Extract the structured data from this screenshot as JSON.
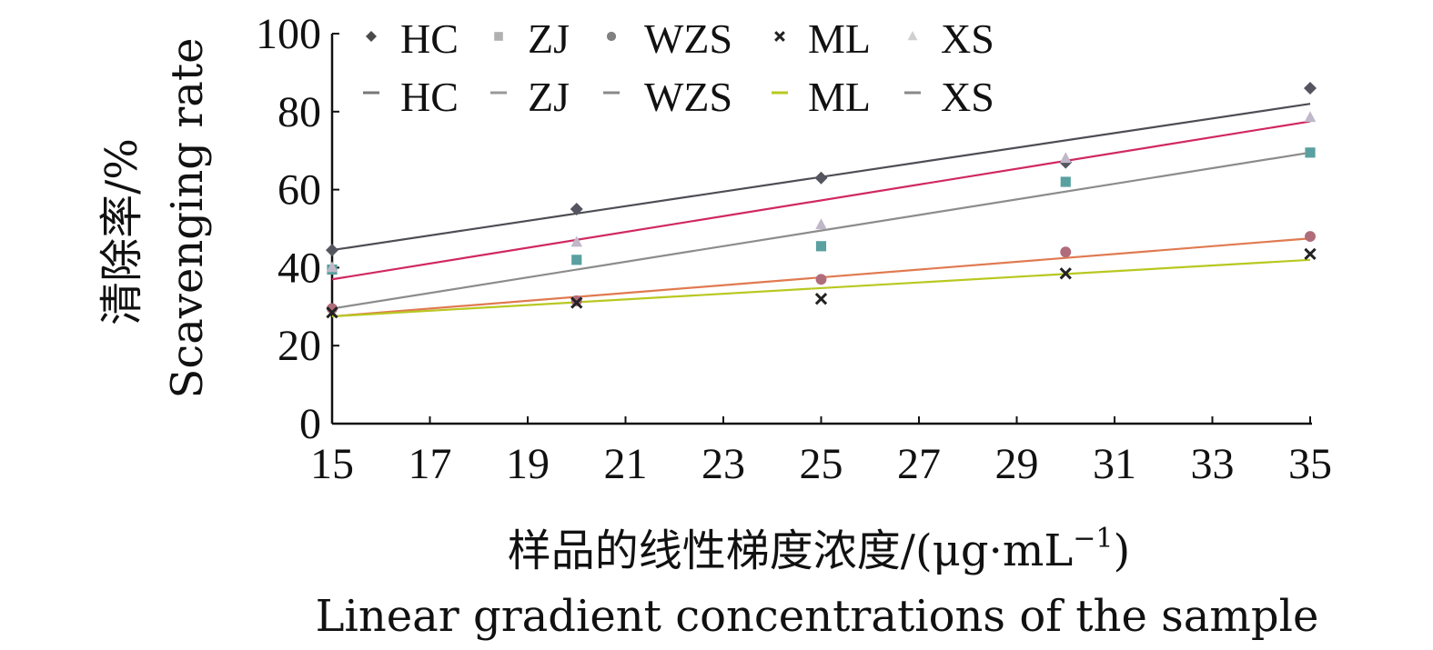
{
  "chart_data": {
    "type": "scatter",
    "x": [
      15,
      20,
      25,
      30,
      35
    ],
    "xticks": [
      "15",
      "17",
      "19",
      "21",
      "23",
      "25",
      "27",
      "29",
      "31",
      "33",
      "35"
    ],
    "yticks": [
      "0",
      "20",
      "40",
      "60",
      "80",
      "100"
    ],
    "xlim": [
      15,
      35
    ],
    "ylim": [
      0,
      100
    ],
    "ylabel_cn": "清除率/%",
    "ylabel_en": "Scavenging rate",
    "xlabel_cn_main": "样品的线性梯度浓度/(μg·mL",
    "xlabel_cn_sup": "−1",
    "xlabel_cn_end": ")",
    "xlabel_en": "Linear gradient concentrations of the sample",
    "grid": false,
    "legend_position": "top-left",
    "series": [
      {
        "name": "HC",
        "marker": "diamond",
        "marker_color": "#55555f",
        "line_color": "#4d4d55",
        "values": [
          44.5,
          55,
          63,
          67,
          86
        ],
        "trend": [
          44.5,
          82
        ]
      },
      {
        "name": "ZJ",
        "marker": "square",
        "marker_color": "#5aa0a0",
        "line_color": "#8c8c8c",
        "values": [
          39.5,
          42,
          45.5,
          62,
          69.5
        ],
        "trend": [
          29.5,
          69.5
        ]
      },
      {
        "name": "WZS",
        "marker": "circle",
        "marker_color": "#b06c7a",
        "line_color": "#e07a50",
        "values": [
          29.5,
          31.5,
          37,
          44,
          48
        ],
        "trend": [
          27.5,
          47.5
        ]
      },
      {
        "name": "ML",
        "marker": "x",
        "marker_color": "#222222",
        "line_color": "#b8c820",
        "values": [
          28.5,
          31,
          32,
          38.5,
          43.5
        ],
        "trend": [
          27.5,
          42
        ]
      },
      {
        "name": "XS",
        "marker": "triangle",
        "marker_color": "#c0b8c8",
        "line_color": "#d02860",
        "values": [
          40,
          46.5,
          51,
          68,
          78.5
        ],
        "trend": [
          37,
          77.5
        ]
      }
    ],
    "legend_marker_colors": [
      "#4a4a4a",
      "#b0b0b0",
      "#808080",
      "#222222",
      "#d0d0d0"
    ],
    "legend_line_colors": [
      "#777777",
      "#999999",
      "#888888",
      "#b8c820",
      "#888888"
    ]
  }
}
